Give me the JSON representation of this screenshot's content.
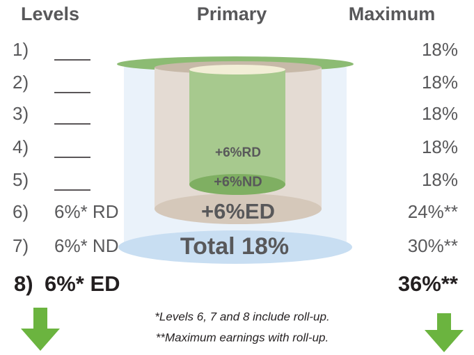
{
  "header": {
    "levels": "Levels",
    "primary": "Primary",
    "maximum": "Maximum"
  },
  "rows": [
    {
      "level": "1)",
      "maximum": "18%"
    },
    {
      "level": "2)",
      "maximum": "18%"
    },
    {
      "level": "3)",
      "maximum": "18%"
    },
    {
      "level": "4)",
      "maximum": "18%"
    },
    {
      "level": "5)",
      "maximum": "18%"
    },
    {
      "level": "6)",
      "primary": "6%* RD",
      "maximum": "24%**"
    },
    {
      "level": "7)",
      "primary": "6%* ND",
      "maximum": "30%**"
    },
    {
      "level": "8)",
      "primary": "6%* ED",
      "maximum": "36%**"
    }
  ],
  "cylinder": {
    "rd": "+6%RD",
    "nd": "+6%ND",
    "ed": "+6%ED",
    "total": "Total 18%"
  },
  "footnotes": [
    "*Levels 6, 7 and 8 include roll-up.",
    "**Maximum earnings with roll-up."
  ]
}
